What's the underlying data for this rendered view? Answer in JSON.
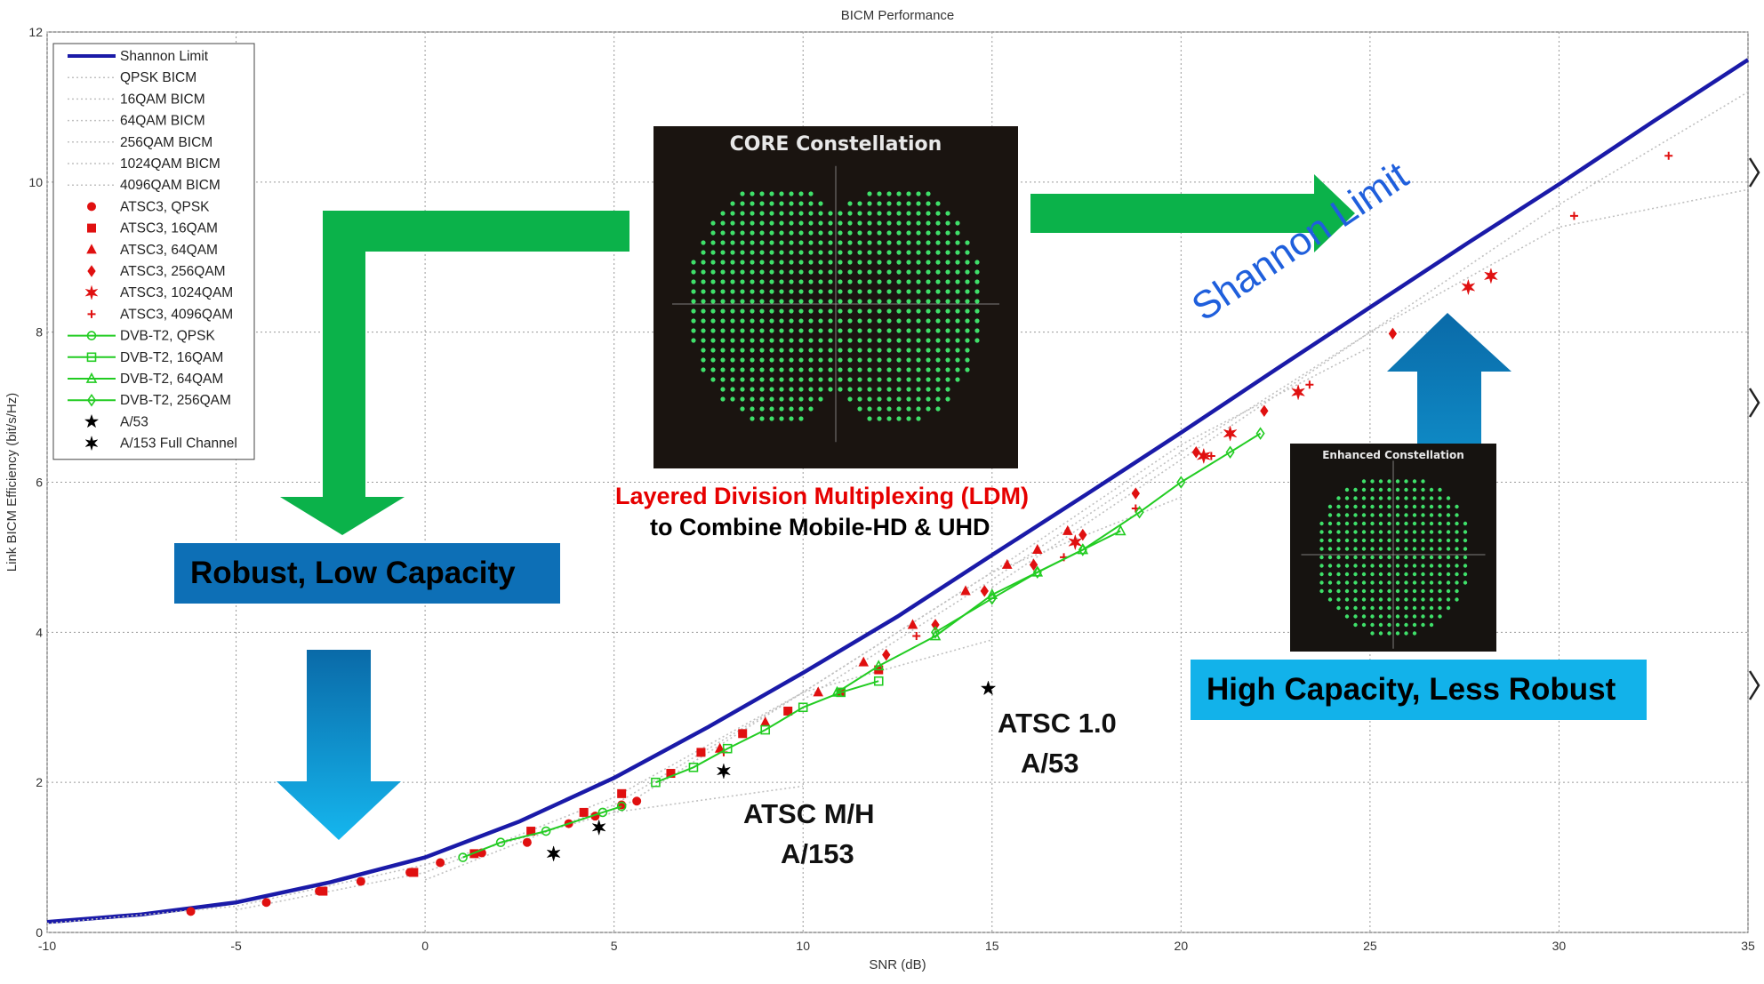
{
  "chart_data": {
    "type": "line",
    "title": "BICM Performance",
    "xlabel": "SNR (dB)",
    "ylabel": "Link BICM Efficiency (bit/s/Hz)",
    "xlim": [
      -10,
      35
    ],
    "ylim": [
      0,
      12
    ],
    "xticks": [
      -10,
      -5,
      0,
      5,
      10,
      15,
      20,
      25,
      30,
      35
    ],
    "yticks": [
      0,
      2,
      4,
      6,
      8,
      10,
      12
    ],
    "grid": true,
    "legend_position": "top-left",
    "series": [
      {
        "name": "Shannon Limit",
        "color": "#1a1aa8",
        "style": "solid-thick",
        "x": [
          -10,
          -7.5,
          -5,
          -2.5,
          0,
          2.5,
          5,
          7.5,
          10,
          12.5,
          15,
          17.5,
          20,
          22.5,
          25,
          27.5,
          30,
          32.5,
          35
        ],
        "y": [
          0.14,
          0.24,
          0.4,
          0.67,
          1.0,
          1.48,
          2.06,
          2.74,
          3.46,
          4.21,
          5.03,
          5.84,
          6.66,
          7.5,
          8.33,
          9.16,
          9.97,
          10.81,
          11.63
        ]
      },
      {
        "name": "QPSK BICM",
        "color": "#c0c0c0",
        "style": "dotted",
        "x": [
          -10,
          -5,
          0,
          5,
          10
        ],
        "y": [
          0.12,
          0.35,
          0.9,
          1.6,
          1.95
        ]
      },
      {
        "name": "16QAM BICM",
        "color": "#c0c0c0",
        "style": "dotted",
        "x": [
          -5,
          0,
          5,
          10,
          15
        ],
        "y": [
          0.3,
          0.8,
          1.8,
          3.2,
          3.9
        ]
      },
      {
        "name": "64QAM BICM",
        "color": "#c0c0c0",
        "style": "dotted",
        "x": [
          0,
          5,
          10,
          15,
          20
        ],
        "y": [
          0.7,
          1.7,
          3.2,
          4.8,
          5.8
        ]
      },
      {
        "name": "256QAM BICM",
        "color": "#c0c0c0",
        "style": "dotted",
        "x": [
          5,
          10,
          15,
          20,
          25
        ],
        "y": [
          1.6,
          3.2,
          4.8,
          6.5,
          7.8
        ]
      },
      {
        "name": "1024QAM BICM",
        "color": "#c0c0c0",
        "style": "dotted",
        "x": [
          10,
          15,
          20,
          25,
          30,
          35
        ],
        "y": [
          3.1,
          4.7,
          6.4,
          8.0,
          9.4,
          9.9
        ]
      },
      {
        "name": "4096QAM BICM",
        "color": "#c0c0c0",
        "style": "dotted",
        "x": [
          15,
          20,
          25,
          30,
          35
        ],
        "y": [
          4.6,
          6.3,
          8.0,
          9.7,
          11.2
        ]
      },
      {
        "name": "ATSC3, QPSK",
        "color": "#e01010",
        "marker": "circle",
        "x": [
          -6.2,
          -4.2,
          -2.8,
          -1.7,
          -0.4,
          0.4,
          1.5,
          2.7,
          3.8,
          4.5,
          5.2,
          5.6
        ],
        "y": [
          0.28,
          0.4,
          0.55,
          0.68,
          0.8,
          0.93,
          1.06,
          1.2,
          1.45,
          1.55,
          1.7,
          1.75
        ]
      },
      {
        "name": "ATSC3, 16QAM",
        "color": "#e01010",
        "marker": "square",
        "x": [
          -2.7,
          -0.3,
          1.3,
          2.8,
          4.2,
          5.2,
          6.5,
          7.3,
          8.4,
          9.6,
          11.0,
          12.0
        ],
        "y": [
          0.55,
          0.8,
          1.05,
          1.35,
          1.6,
          1.85,
          2.12,
          2.4,
          2.65,
          2.95,
          3.2,
          3.5
        ]
      },
      {
        "name": "ATSC3, 64QAM",
        "color": "#e01010",
        "marker": "triangle",
        "x": [
          7.8,
          9.0,
          10.4,
          11.6,
          12.9,
          14.3,
          15.4,
          16.2,
          17.0
        ],
        "y": [
          2.45,
          2.8,
          3.2,
          3.6,
          4.1,
          4.55,
          4.9,
          5.1,
          5.35
        ]
      },
      {
        "name": "ATSC3, 256QAM",
        "color": "#e01010",
        "marker": "diamond",
        "x": [
          12.2,
          13.5,
          14.8,
          16.1,
          17.4,
          18.8,
          20.4,
          22.2,
          25.6
        ],
        "y": [
          3.7,
          4.1,
          4.55,
          4.9,
          5.3,
          5.85,
          6.4,
          6.95,
          7.98
        ]
      },
      {
        "name": "ATSC3, 1024QAM",
        "color": "#e01010",
        "marker": "star6",
        "x": [
          17.2,
          20.6,
          21.3,
          23.1,
          27.6,
          28.2
        ],
        "y": [
          5.2,
          6.35,
          6.65,
          7.2,
          8.6,
          8.75
        ]
      },
      {
        "name": "ATSC3, 4096QAM",
        "color": "#e01010",
        "marker": "plus",
        "x": [
          7.9,
          13.0,
          16.9,
          18.8,
          20.8,
          23.4,
          30.4,
          32.9
        ],
        "y": [
          2.4,
          3.95,
          5.0,
          5.65,
          6.35,
          7.3,
          9.55,
          10.35
        ]
      },
      {
        "name": "DVB-T2, QPSK",
        "color": "#22cc22",
        "marker": "circle-open",
        "x": [
          1.0,
          2.0,
          3.2,
          4.7,
          5.2
        ],
        "y": [
          1.0,
          1.2,
          1.35,
          1.6,
          1.68
        ]
      },
      {
        "name": "DVB-T2, 16QAM",
        "color": "#22cc22",
        "marker": "square-open",
        "x": [
          6.1,
          7.1,
          8.0,
          9.0,
          10.0,
          11.0,
          12.0
        ],
        "y": [
          2.0,
          2.2,
          2.45,
          2.7,
          3.0,
          3.2,
          3.35
        ]
      },
      {
        "name": "DVB-T2, 64QAM",
        "color": "#22cc22",
        "marker": "triangle-open",
        "x": [
          10.9,
          12.0,
          13.5,
          15.0,
          16.2,
          17.4,
          18.4
        ],
        "y": [
          3.2,
          3.55,
          3.95,
          4.5,
          4.8,
          5.1,
          5.35
        ]
      },
      {
        "name": "DVB-T2, 256QAM",
        "color": "#22cc22",
        "marker": "diamond-open",
        "x": [
          13.5,
          15.0,
          16.2,
          17.4,
          18.9,
          20.0,
          21.3,
          22.1
        ],
        "y": [
          4.0,
          4.45,
          4.8,
          5.1,
          5.6,
          6.0,
          6.4,
          6.65
        ]
      },
      {
        "name": "A/53",
        "color": "#000000",
        "marker": "star5",
        "x": [
          14.9
        ],
        "y": [
          3.25
        ]
      },
      {
        "name": "A/153 Full Channel",
        "color": "#000000",
        "marker": "star6",
        "x": [
          3.4,
          4.6,
          7.9
        ],
        "y": [
          1.05,
          1.4,
          2.15
        ]
      }
    ]
  },
  "annotations": {
    "shannon_label": "Shannon Limit",
    "ldm_line1": "Layered Division Multiplexing (LDM)",
    "ldm_line2": "to Combine Mobile-HD & UHD",
    "robust_box": "Robust, Low Capacity",
    "capacity_box": "High Capacity, Less Robust",
    "atsc1_line1": "ATSC 1.0",
    "atsc1_line2": "A/53",
    "atscmh_line1": "ATSC M/H",
    "atscmh_line2": "A/153",
    "core_title": "CORE Constellation",
    "enhanced_title": "Enhanced Constellation"
  },
  "colors": {
    "arrow_green": "#0bb24a",
    "arrow_blue_top": "#0a6aa8",
    "arrow_blue_bottom": "#15b6ee",
    "robust_box_bg": "#0d6fb6",
    "capacity_box_bg": "#12b2ea",
    "shannon_text": "#1f5fdc",
    "ldm_red": "#e60000",
    "constellation_green": "#3fe06a"
  }
}
